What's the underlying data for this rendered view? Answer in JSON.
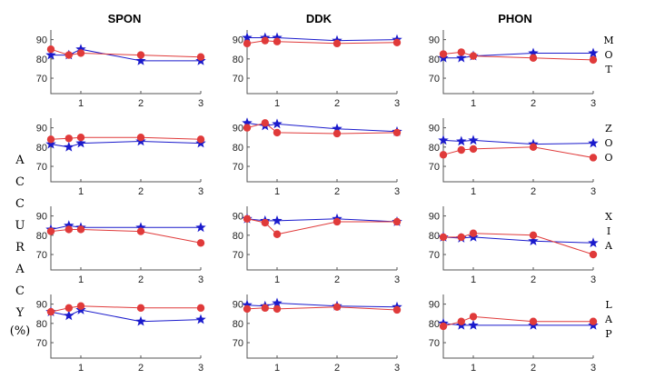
{
  "chart_data": {
    "type": "line",
    "layout": "4x3 small multiples",
    "columns": [
      "SPON",
      "DDK",
      "PHON"
    ],
    "rows": [
      "MOT",
      "ZOO",
      "XIA",
      "LAP"
    ],
    "ylabel": "ACCURACY (%)",
    "x": [
      0.5,
      0.8,
      1,
      2,
      3
    ],
    "xticks": [
      1,
      2,
      3
    ],
    "xlim": [
      0.5,
      3
    ],
    "ylim": [
      62,
      95
    ],
    "yticks": [
      70,
      80,
      90
    ],
    "series_styles": [
      {
        "marker": "star",
        "color": "#1a1acc"
      },
      {
        "marker": "circle",
        "color": "#e03a3a"
      }
    ],
    "panels": [
      {
        "row": "MOT",
        "column": "SPON",
        "series": [
          {
            "values": [
              82,
              82,
              85,
              79,
              79
            ]
          },
          {
            "values": [
              85,
              82,
              83,
              82,
              81
            ]
          }
        ]
      },
      {
        "row": "MOT",
        "column": "DDK",
        "series": [
          {
            "values": [
              91,
              91,
              91,
              89.5,
              90
            ]
          },
          {
            "values": [
              88,
              89.5,
              89,
              88,
              88.5
            ]
          }
        ]
      },
      {
        "row": "MOT",
        "column": "PHON",
        "series": [
          {
            "values": [
              80.5,
              80.5,
              81.5,
              83,
              83
            ]
          },
          {
            "values": [
              82.5,
              83.5,
              81.5,
              80.5,
              79.5
            ]
          }
        ]
      },
      {
        "row": "ZOO",
        "column": "SPON",
        "series": [
          {
            "values": [
              81.5,
              80,
              82,
              83,
              82
            ]
          },
          {
            "values": [
              84,
              84.5,
              85,
              85,
              84
            ]
          }
        ]
      },
      {
        "row": "ZOO",
        "column": "DDK",
        "series": [
          {
            "values": [
              92.5,
              91,
              92,
              89.5,
              88
            ]
          },
          {
            "values": [
              90,
              92.5,
              87.5,
              87,
              87.5
            ]
          }
        ]
      },
      {
        "row": "ZOO",
        "column": "PHON",
        "series": [
          {
            "values": [
              83.5,
              83,
              83.5,
              81.5,
              82
            ]
          },
          {
            "values": [
              76,
              78.5,
              79,
              80,
              74.5
            ]
          }
        ]
      },
      {
        "row": "XIA",
        "column": "SPON",
        "series": [
          {
            "values": [
              83,
              85,
              84,
              84,
              84
            ]
          },
          {
            "values": [
              82,
              83,
              83,
              82,
              76
            ]
          }
        ]
      },
      {
        "row": "XIA",
        "column": "DDK",
        "series": [
          {
            "values": [
              88.5,
              87.5,
              87.5,
              88.5,
              87
            ]
          },
          {
            "values": [
              88.5,
              86.5,
              80.5,
              87,
              87
            ]
          }
        ]
      },
      {
        "row": "XIA",
        "column": "PHON",
        "series": [
          {
            "values": [
              79,
              78.5,
              79,
              77,
              76
            ]
          },
          {
            "values": [
              79,
              79,
              81,
              80,
              70
            ]
          }
        ]
      },
      {
        "row": "LAP",
        "column": "SPON",
        "series": [
          {
            "values": [
              86,
              84,
              87,
              81,
              82
            ]
          },
          {
            "values": [
              86,
              88,
              89,
              88,
              88
            ]
          }
        ]
      },
      {
        "row": "LAP",
        "column": "DDK",
        "series": [
          {
            "values": [
              89.5,
              89,
              90.5,
              89,
              88.5
            ]
          },
          {
            "values": [
              87.5,
              88,
              87.5,
              88.5,
              87
            ]
          }
        ]
      },
      {
        "row": "LAP",
        "column": "PHON",
        "series": [
          {
            "values": [
              80,
              79,
              79,
              79,
              79
            ]
          },
          {
            "values": [
              78.5,
              81,
              83.5,
              81,
              81
            ]
          }
        ]
      }
    ]
  }
}
